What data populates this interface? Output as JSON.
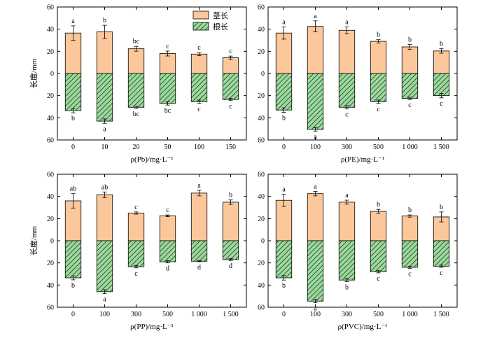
{
  "colors": {
    "stem": "#fcc89b",
    "root": "#9ed7a0",
    "stroke": "#000000"
  },
  "legend": [
    "茎长",
    "根长"
  ],
  "chart_data": [
    {
      "type": "bar",
      "xlabel": "ρ(Pb)/mg·L⁻¹",
      "ylabel": "长度/mm",
      "ylim": [
        -60,
        60
      ],
      "ytick_labels": [
        "60",
        "40",
        "20",
        "0",
        "20",
        "40",
        "60"
      ],
      "categories": [
        "0",
        "10",
        "20",
        "50",
        "100",
        "150"
      ],
      "series": [
        {
          "name": "茎长",
          "values": [
            36.5,
            37.5,
            22.3,
            18.0,
            17.5,
            14.2
          ],
          "errors": [
            6.5,
            6.0,
            2.2,
            2.2,
            1.5,
            1.5
          ],
          "labels": [
            "a",
            "b",
            "bc",
            "c",
            "c",
            "c"
          ]
        },
        {
          "name": "根长",
          "values": [
            33.5,
            43.0,
            30.5,
            27.0,
            25.5,
            23.5
          ],
          "errors": [
            2.0,
            2.0,
            1.0,
            1.5,
            1.5,
            1.0
          ],
          "labels": [
            "b",
            "a",
            "bc",
            "bc",
            "c",
            "c"
          ]
        }
      ]
    },
    {
      "type": "bar",
      "xlabel": "ρ(PE)/mg·L⁻¹",
      "ylabel": "",
      "ylim": [
        -60,
        60
      ],
      "ytick_labels": [
        "60",
        "40",
        "20",
        "0",
        "20",
        "40",
        "60"
      ],
      "categories": [
        "0",
        "100",
        "300",
        "500",
        "1 000",
        "1 500"
      ],
      "series": [
        {
          "name": "茎长",
          "values": [
            36.5,
            42.5,
            39.0,
            29.0,
            24.0,
            20.3
          ],
          "errors": [
            5.5,
            5.0,
            3.0,
            1.5,
            2.2,
            2.0
          ],
          "labels": [
            "a",
            "a",
            "a",
            "b",
            "b",
            "b"
          ]
        },
        {
          "name": "根长",
          "values": [
            33.0,
            50.5,
            30.5,
            25.5,
            22.5,
            20.0
          ],
          "errors": [
            2.0,
            1.5,
            1.5,
            1.5,
            1.0,
            2.0
          ],
          "labels": [
            "b",
            "a",
            "c",
            "c",
            "c",
            "c"
          ]
        }
      ]
    },
    {
      "type": "bar",
      "xlabel": "ρ(PP)/mg·L⁻¹",
      "ylabel": "长度/mm",
      "ylim": [
        -60,
        60
      ],
      "ytick_labels": [
        "60",
        "40",
        "20",
        "0",
        "20",
        "40",
        "60"
      ],
      "categories": [
        "0",
        "100",
        "300",
        "500",
        "1 000",
        "1 500"
      ],
      "series": [
        {
          "name": "茎长",
          "values": [
            36.0,
            41.5,
            25.0,
            22.5,
            43.0,
            34.8
          ],
          "errors": [
            6.5,
            2.5,
            1.0,
            0.8,
            2.5,
            2.0
          ],
          "labels": [
            "ab",
            "ab",
            "c",
            "c",
            "a",
            "b"
          ]
        },
        {
          "name": "根长",
          "values": [
            33.5,
            46.0,
            23.5,
            19.0,
            18.5,
            17.0
          ],
          "errors": [
            1.8,
            1.8,
            1.0,
            1.0,
            0.5,
            0.8
          ],
          "labels": [
            "b",
            "a",
            "c",
            "d",
            "d",
            "d"
          ]
        }
      ]
    },
    {
      "type": "bar",
      "xlabel": "ρ(PVC)/mg·L⁻¹",
      "ylabel": "",
      "ylim": [
        -60,
        60
      ],
      "ytick_labels": [
        "60",
        "40",
        "20",
        "0",
        "20",
        "40",
        "60"
      ],
      "categories": [
        "0",
        "100",
        "300",
        "500",
        "1 000",
        "1 500"
      ],
      "series": [
        {
          "name": "茎长",
          "values": [
            36.5,
            42.5,
            34.8,
            26.5,
            22.3,
            21.5
          ],
          "errors": [
            5.5,
            2.0,
            1.8,
            1.8,
            1.0,
            4.5
          ],
          "labels": [
            "a",
            "a",
            "a",
            "b",
            "b",
            "b"
          ]
        },
        {
          "name": "根长",
          "values": [
            33.5,
            54.5,
            35.5,
            28.0,
            24.0,
            23.0
          ],
          "errors": [
            2.0,
            1.5,
            1.5,
            1.0,
            1.0,
            1.0
          ],
          "labels": [
            "b",
            "a",
            "b",
            "c",
            "c",
            "c"
          ]
        }
      ]
    }
  ]
}
